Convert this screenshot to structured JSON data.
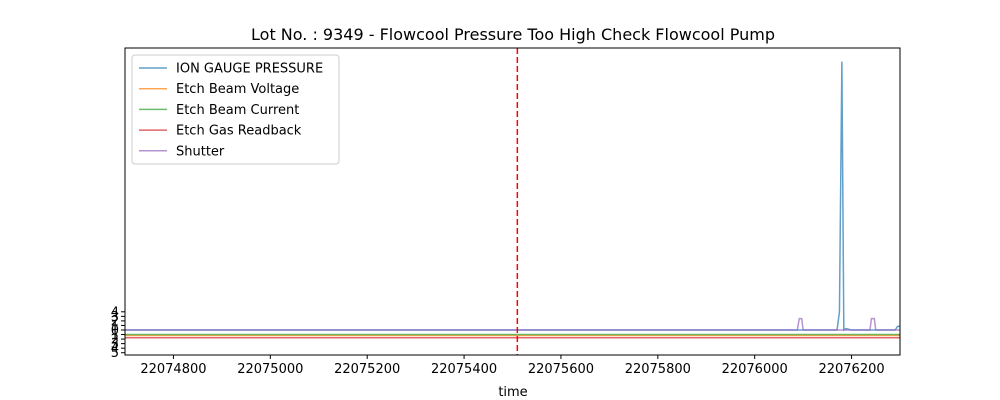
{
  "chart_data": {
    "type": "line",
    "title": "Lot No. : 9349 - Flowcool Pressure Too High Check Flowcool Pump",
    "xlabel": "time",
    "ylabel": "",
    "xlim": [
      22074700,
      22076300
    ],
    "ylim": [
      -5.5,
      62
    ],
    "x_ticks": [
      22074800,
      22075000,
      22075200,
      22075400,
      22075600,
      22075800,
      22076000,
      22076200
    ],
    "y_ticks": [
      {
        "value": 4,
        "label": "4"
      },
      {
        "value": 3,
        "label": "3"
      },
      {
        "value": 2,
        "label": "2"
      },
      {
        "value": 1,
        "label": "1"
      },
      {
        "value": 0,
        "label": "0"
      },
      {
        "value": -1,
        "label": "1"
      },
      {
        "value": -2,
        "label": "2"
      },
      {
        "value": -3,
        "label": "3"
      },
      {
        "value": -4,
        "label": "4"
      },
      {
        "value": -5,
        "label": "5"
      }
    ],
    "vline": {
      "x": 22075510,
      "color": "#ff0000",
      "style": "dashed"
    },
    "legend_position": "top-left",
    "series": [
      {
        "name": "ION GAUGE PRESSURE",
        "color": "#1f77b4",
        "points": [
          [
            22074700,
            0
          ],
          [
            22076170,
            0
          ],
          [
            22076175,
            4
          ],
          [
            22076180,
            59
          ],
          [
            22076184,
            0
          ],
          [
            22076188,
            0.3
          ],
          [
            22076200,
            0
          ],
          [
            22076290,
            0
          ],
          [
            22076295,
            0.8
          ],
          [
            22076300,
            0.8
          ]
        ]
      },
      {
        "name": "Etch Beam Voltage",
        "color": "#ff7f0e",
        "points": [
          [
            22074700,
            -1.2
          ],
          [
            22076300,
            -1.2
          ]
        ]
      },
      {
        "name": "Etch Beam Current",
        "color": "#2ca02c",
        "points": [
          [
            22074700,
            -1.0
          ],
          [
            22076300,
            -1.0
          ]
        ]
      },
      {
        "name": "Etch Gas Readback",
        "color": "#d62728",
        "points": [
          [
            22074700,
            -1.7
          ],
          [
            22076300,
            -1.7
          ]
        ]
      },
      {
        "name": "Shutter",
        "color": "#9467bd",
        "points": [
          [
            22074700,
            0
          ],
          [
            22076088,
            0
          ],
          [
            22076092,
            2.5
          ],
          [
            22076097,
            2.5
          ],
          [
            22076100,
            0
          ],
          [
            22076238,
            0
          ],
          [
            22076241,
            2.5
          ],
          [
            22076247,
            2.5
          ],
          [
            22076250,
            0
          ],
          [
            22076300,
            0
          ]
        ]
      }
    ]
  }
}
